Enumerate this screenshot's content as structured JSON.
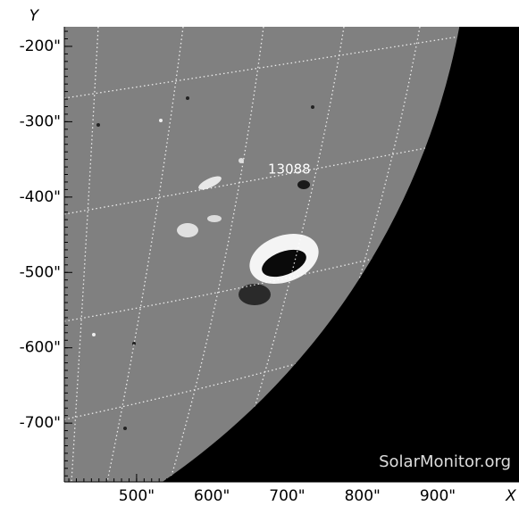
{
  "chart_data": {
    "type": "image",
    "x_label": "X",
    "y_label": "Y",
    "xlim": [
      404,
      1008
    ],
    "ylim": [
      -778,
      -174
    ],
    "xticks": [
      {
        "value": 500,
        "label": "500\""
      },
      {
        "value": 600,
        "label": "600\""
      },
      {
        "value": 700,
        "label": "700\""
      },
      {
        "value": 800,
        "label": "800\""
      },
      {
        "value": 900,
        "label": "900\""
      }
    ],
    "yticks": [
      {
        "value": -200,
        "label": "-200\""
      },
      {
        "value": -300,
        "label": "-300\""
      },
      {
        "value": -400,
        "label": "-400\""
      },
      {
        "value": -500,
        "label": "-500\""
      },
      {
        "value": -600,
        "label": "-600\""
      },
      {
        "value": -700,
        "label": "-700\""
      }
    ],
    "annotations": [
      "13088"
    ],
    "watermark": "SolarMonitor.org"
  }
}
